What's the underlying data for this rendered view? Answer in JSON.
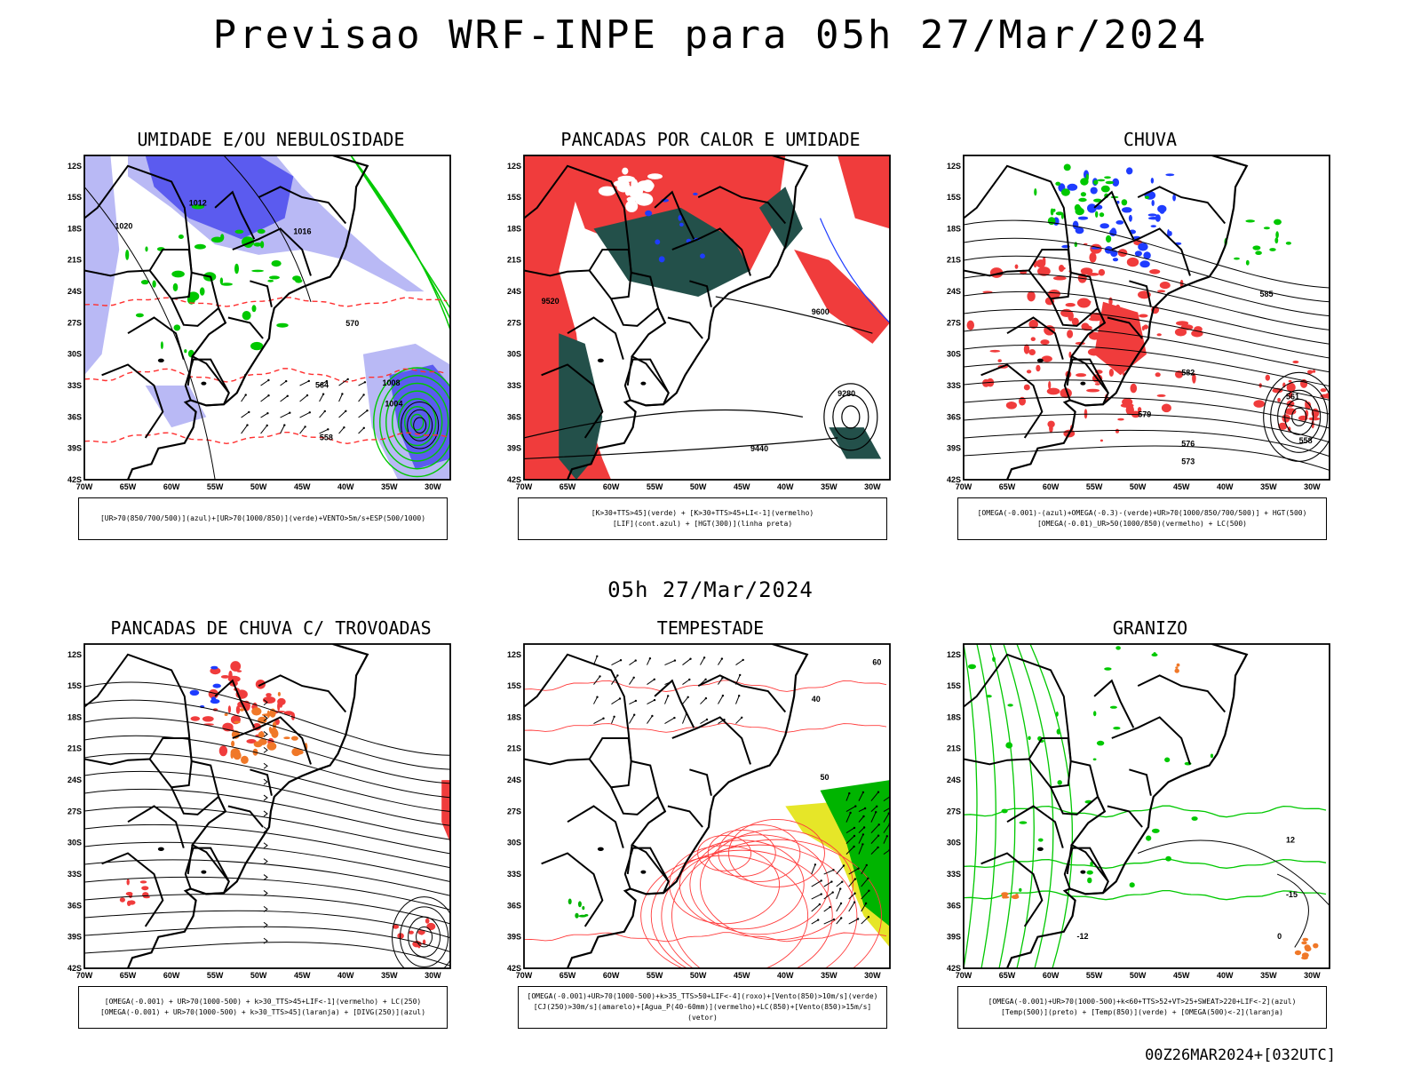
{
  "header": {
    "title": "Previsao WRF-INPE  para 05h 27/Mar/2024"
  },
  "mid_time": "05h 27/Mar/2024",
  "footer": "00Z26MAR2024+[032UTC]",
  "axes": {
    "lat_labels": [
      "12S",
      "15S",
      "18S",
      "21S",
      "24S",
      "27S",
      "30S",
      "33S",
      "36S",
      "39S",
      "42S"
    ],
    "lon_labels": [
      "70W",
      "65W",
      "60W",
      "55W",
      "50W",
      "45W",
      "40W",
      "35W",
      "30W"
    ]
  },
  "panels": [
    {
      "title": "UMIDADE E/OU NEBULOSIDADE",
      "legend": [
        "[UR>70(850/700/500)](azul)+[UR>70(1000/850)](verde)+VENTO>5m/s+ESP(500/1000)"
      ],
      "colors": {
        "fill1": "#5b5bef",
        "fill2": "#b9b9f5",
        "line1": "#00c800",
        "line2": "#ff3030"
      },
      "contour_labels": [
        "1012",
        "1016",
        "1020",
        "1008",
        "1004",
        "570",
        "564",
        "558"
      ]
    },
    {
      "title": "PANCADAS POR CALOR E UMIDADE",
      "legend": [
        "[K>30+TTS>45](verde) + [K>30+TTS>45+LI<-1](vermelho)",
        "[LIF](cont.azul) + [HGT(300)](linha preta)"
      ],
      "colors": {
        "fill1": "#f03c3c",
        "fill2": "#23504a",
        "line1": "#1e3cff"
      },
      "contour_labels": [
        "9600",
        "9520",
        "9440",
        "9280"
      ]
    },
    {
      "title": "CHUVA",
      "legend": [
        "[OMEGA(-0.001)-(azul)+OMEGA(-0.3)-(verde)+UR>70(1000/850/700/500)] + HGT(500)",
        "[OMEGA(-0.01)_UR>50(1000/850)(vermelho) + LC(500)"
      ],
      "colors": {
        "fill1": "#f03c3c",
        "fill2": "#1e3cff",
        "fill3": "#00c800"
      },
      "contour_labels": [
        "585",
        "582",
        "579",
        "576",
        "573",
        "561",
        "558"
      ]
    },
    {
      "title": "PANCADAS DE CHUVA C/ TROVOADAS",
      "legend": [
        "[OMEGA(-0.001) + UR>70(1000-500) + k>30_TTS>45+LIF<-1](vermelho) + LC(250)",
        "[OMEGA(-0.001) + UR>70(1000-500) + k>30_TTS>45](laranja) + [DIVG(250)](azul)"
      ],
      "colors": {
        "fill1": "#f03c3c",
        "fill2": "#f07828",
        "fill3": "#1e3cff"
      },
      "contour_labels": []
    },
    {
      "title": "TEMPESTADE",
      "legend": [
        "[OMEGA(-0.001)+UR>70(1000-500)+k>35_TTS>50+LIF<-4](roxo)+[Vento(850)>10m/s](verde)",
        "[CJ(250)>30m/s](amarelo)+[Agua_P(40-60mm)](vermelho)+LC(850)+[Vento(850)>15m/s](vetor)"
      ],
      "colors": {
        "fill1": "#e6e628",
        "fill2": "#00b400",
        "line1": "#ff3c3c"
      },
      "contour_labels": [
        "40",
        "50",
        "60"
      ]
    },
    {
      "title": "GRANIZO",
      "legend": [
        "[OMEGA(-0.001)+UR>70(1000-500)+k<60+TTS>52+VT>25+SWEAT>220+LIF<-2](azul)",
        "[Temp(500)](preto) + [Temp(850)](verde) + [OMEGA(500)<-2](laranja)"
      ],
      "colors": {
        "line1": "#00c800",
        "line2": "#000000",
        "fill1": "#f07828"
      },
      "contour_labels": [
        "-12",
        "-15",
        "12",
        "0"
      ]
    }
  ]
}
